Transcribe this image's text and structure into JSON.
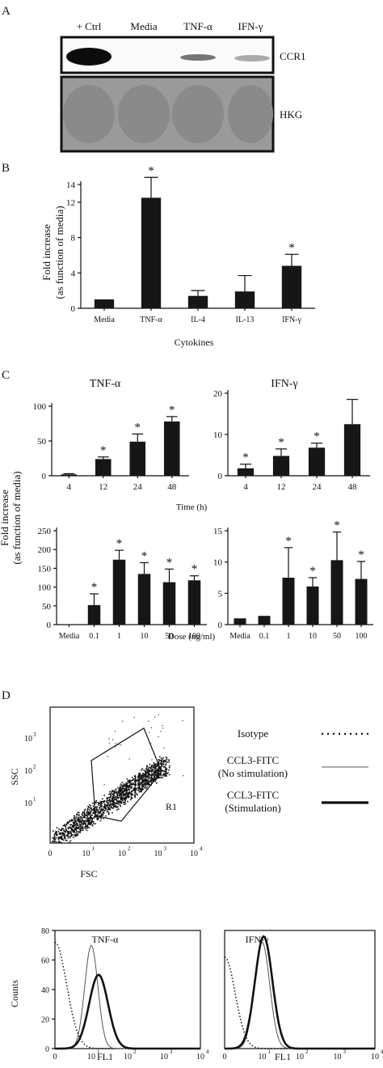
{
  "panels": {
    "A": {
      "letter": "A",
      "lanes": [
        "+ Ctrl",
        "Media",
        "TNF-α",
        "IFN-γ"
      ],
      "rows": [
        "CCR1",
        "HKG"
      ]
    },
    "B": {
      "letter": "B",
      "ylabel_line1": "Fold increase",
      "ylabel_line2": "(as function of media)",
      "xlabel": "Cytokines"
    },
    "C": {
      "letter": "C",
      "shared_ylabel_line1": "Fold increase",
      "shared_ylabel_line2": "(as function of media)",
      "time_xlabel": "Time (h)",
      "dose_xlabel": "Dose (ng/ml)",
      "left_title": "TNF-α",
      "right_title": "IFN-γ"
    },
    "D": {
      "letter": "D",
      "scatter": {
        "xlabel": "FSC",
        "ylabel": "SSC",
        "gate_label": "R1",
        "xticks": [
          "0",
          "10",
          "10",
          "10",
          "10"
        ],
        "xtick_exp": [
          "",
          "1",
          "2",
          "3",
          "4"
        ],
        "yticks": [
          "10",
          "10",
          "10"
        ],
        "ytick_exp": [
          "1",
          "2",
          "3"
        ]
      },
      "legend": [
        {
          "line1": "Isotype",
          "line2": "",
          "style": "dotted"
        },
        {
          "line1": "CCL3-FITC",
          "line2": "(No stimulation)",
          "style": "thin"
        },
        {
          "line1": "CCL3-FITC",
          "line2": "(Stimulation)",
          "style": "thick"
        }
      ],
      "hist_ylabel": "Counts",
      "hist_xlabel": "FL1",
      "hist_titles": [
        "TNF-α",
        "IFN-γ"
      ]
    }
  },
  "chart_data": [
    {
      "id": "B",
      "type": "bar",
      "categories": [
        "Media",
        "TNF-α",
        "IL-4",
        "IL-13",
        "IFN-γ"
      ],
      "values": [
        1,
        12.5,
        1.4,
        1.9,
        4.8
      ],
      "errors": [
        0,
        2.3,
        0.6,
        1.8,
        1.3
      ],
      "significant": [
        false,
        true,
        false,
        false,
        true
      ],
      "yticks": [
        0,
        4,
        8,
        12,
        14
      ],
      "ylim": [
        0,
        14
      ]
    },
    {
      "id": "C-time-TNF",
      "type": "bar",
      "categories": [
        "4",
        "12",
        "24",
        "48"
      ],
      "values": [
        2,
        24,
        49,
        78
      ],
      "errors": [
        1,
        3,
        11,
        7
      ],
      "significant": [
        false,
        true,
        true,
        true
      ],
      "yticks": [
        0,
        50,
        100
      ],
      "ylim": [
        0,
        100
      ]
    },
    {
      "id": "C-time-IFN",
      "type": "bar",
      "categories": [
        "4",
        "12",
        "24",
        "48"
      ],
      "values": [
        1.8,
        4.8,
        6.8,
        12.5
      ],
      "errors": [
        1,
        1.7,
        1.1,
        6
      ],
      "significant": [
        true,
        true,
        true,
        false
      ],
      "yticks": [
        0,
        10,
        20
      ],
      "ylim": [
        0,
        20
      ]
    },
    {
      "id": "C-dose-TNF",
      "type": "bar",
      "categories": [
        "Media",
        "0.1",
        "1",
        "10",
        "50",
        "100"
      ],
      "values": [
        1,
        52,
        173,
        135,
        113,
        118
      ],
      "errors": [
        0,
        30,
        25,
        30,
        35,
        12
      ],
      "significant": [
        false,
        true,
        true,
        true,
        true,
        true
      ],
      "yticks": [
        0,
        50,
        100,
        150,
        200,
        250
      ],
      "ylim": [
        0,
        250
      ]
    },
    {
      "id": "C-dose-IFN",
      "type": "bar",
      "categories": [
        "Media",
        "0.1",
        "1",
        "10",
        "50",
        "100"
      ],
      "values": [
        1,
        1.4,
        7.5,
        6.1,
        10.3,
        7.3
      ],
      "errors": [
        0,
        0,
        4.8,
        1.4,
        4.5,
        2.8
      ],
      "significant": [
        false,
        false,
        true,
        true,
        true,
        true
      ],
      "yticks": [
        0,
        5,
        10,
        15
      ],
      "ylim": [
        0,
        15
      ]
    },
    {
      "id": "D-hist",
      "type": "line",
      "yticks": [
        0,
        20,
        40,
        60,
        80
      ],
      "ylim": [
        0,
        80
      ],
      "xticks": [
        "0",
        "10",
        "10",
        "10",
        "10"
      ],
      "xtick_exp": [
        "",
        "1",
        "2",
        "3",
        "4"
      ]
    }
  ]
}
